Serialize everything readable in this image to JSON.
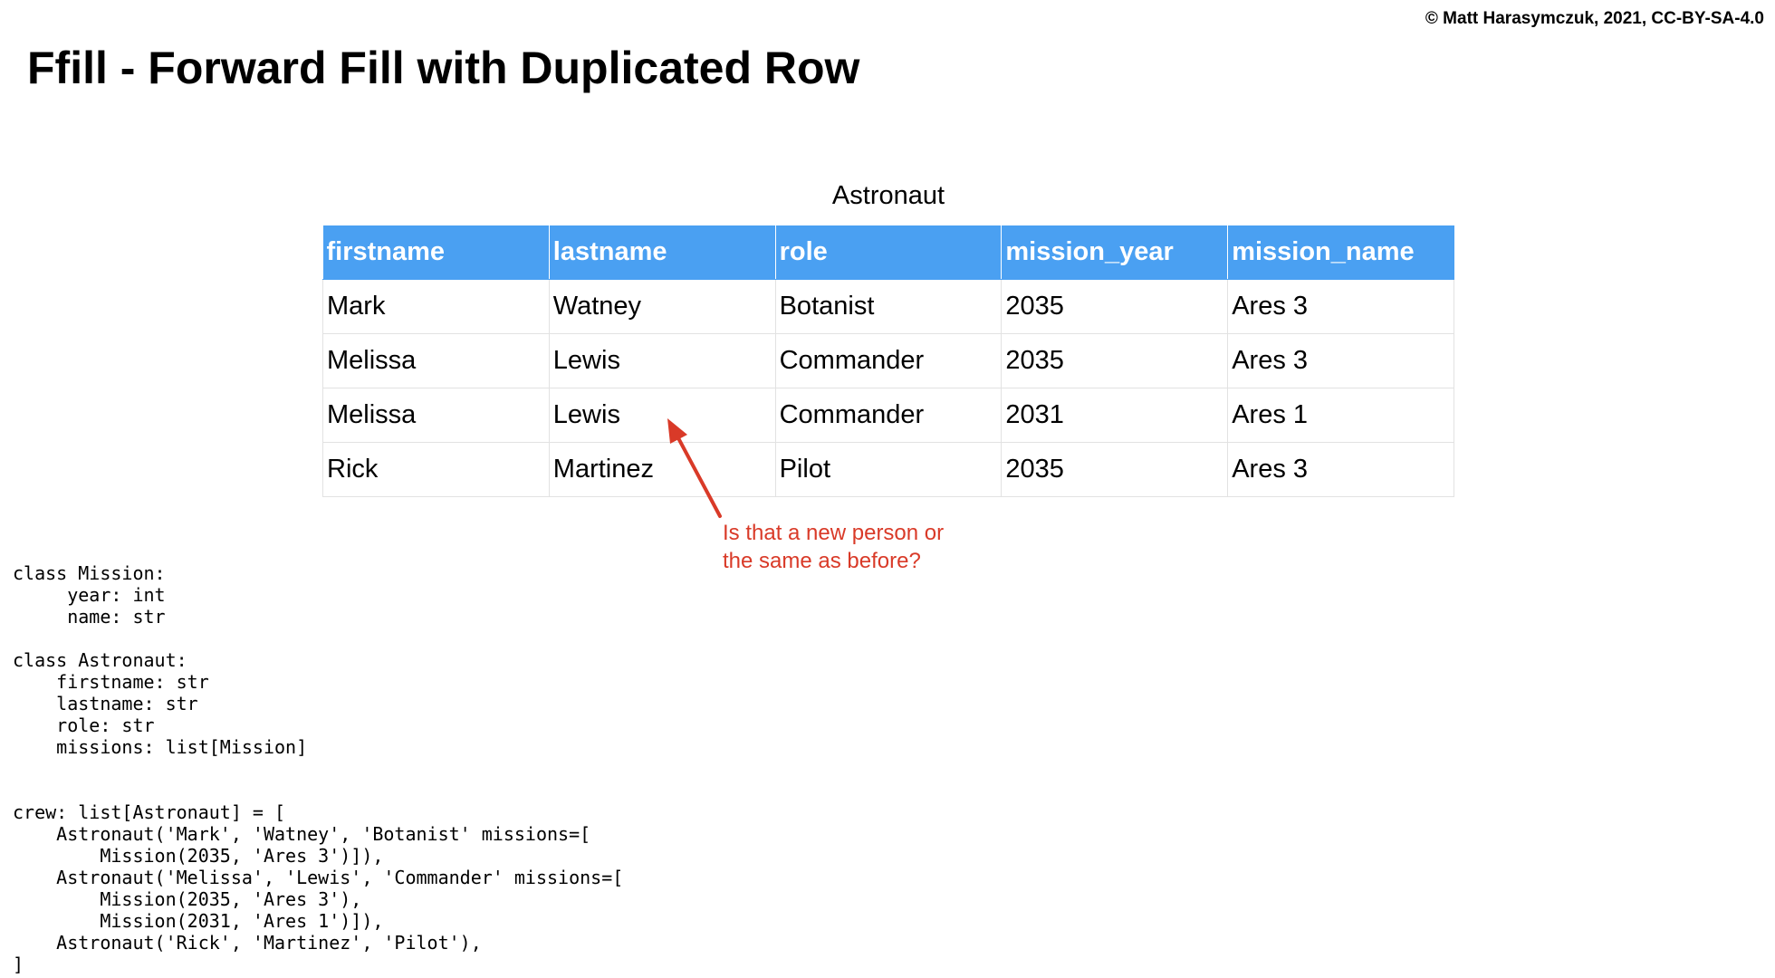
{
  "copyright": "© Matt Harasymczuk, 2021, CC-BY-SA-4.0",
  "title": "Ffill - Forward Fill with Duplicated Row",
  "table": {
    "caption": "Astronaut",
    "header_color": "#4aa0f2",
    "columns": [
      "firstname",
      "lastname",
      "role",
      "mission_year",
      "mission_name"
    ],
    "rows": [
      [
        "Mark",
        "Watney",
        "Botanist",
        "2035",
        "Ares 3"
      ],
      [
        "Melissa",
        "Lewis",
        "Commander",
        "2035",
        "Ares 3"
      ],
      [
        "Melissa",
        "Lewis",
        "Commander",
        "2031",
        "Ares 1"
      ],
      [
        "Rick",
        "Martinez",
        "Pilot",
        "2035",
        "Ares 3"
      ]
    ]
  },
  "annotation": {
    "color": "#d93a28",
    "lines": [
      "Is that a new person or",
      "the same as before?"
    ]
  },
  "code": "class Mission:\n     year: int\n     name: str\n\nclass Astronaut:\n    firstname: str\n    lastname: str\n    role: str\n    missions: list[Mission]\n\n\ncrew: list[Astronaut] = [\n    Astronaut('Mark', 'Watney', 'Botanist' missions=[\n        Mission(2035, 'Ares 3')]),\n    Astronaut('Melissa', 'Lewis', 'Commander' missions=[\n        Mission(2035, 'Ares 3'),\n        Mission(2031, 'Ares 1')]),\n    Astronaut('Rick', 'Martinez', 'Pilot'),\n]"
}
